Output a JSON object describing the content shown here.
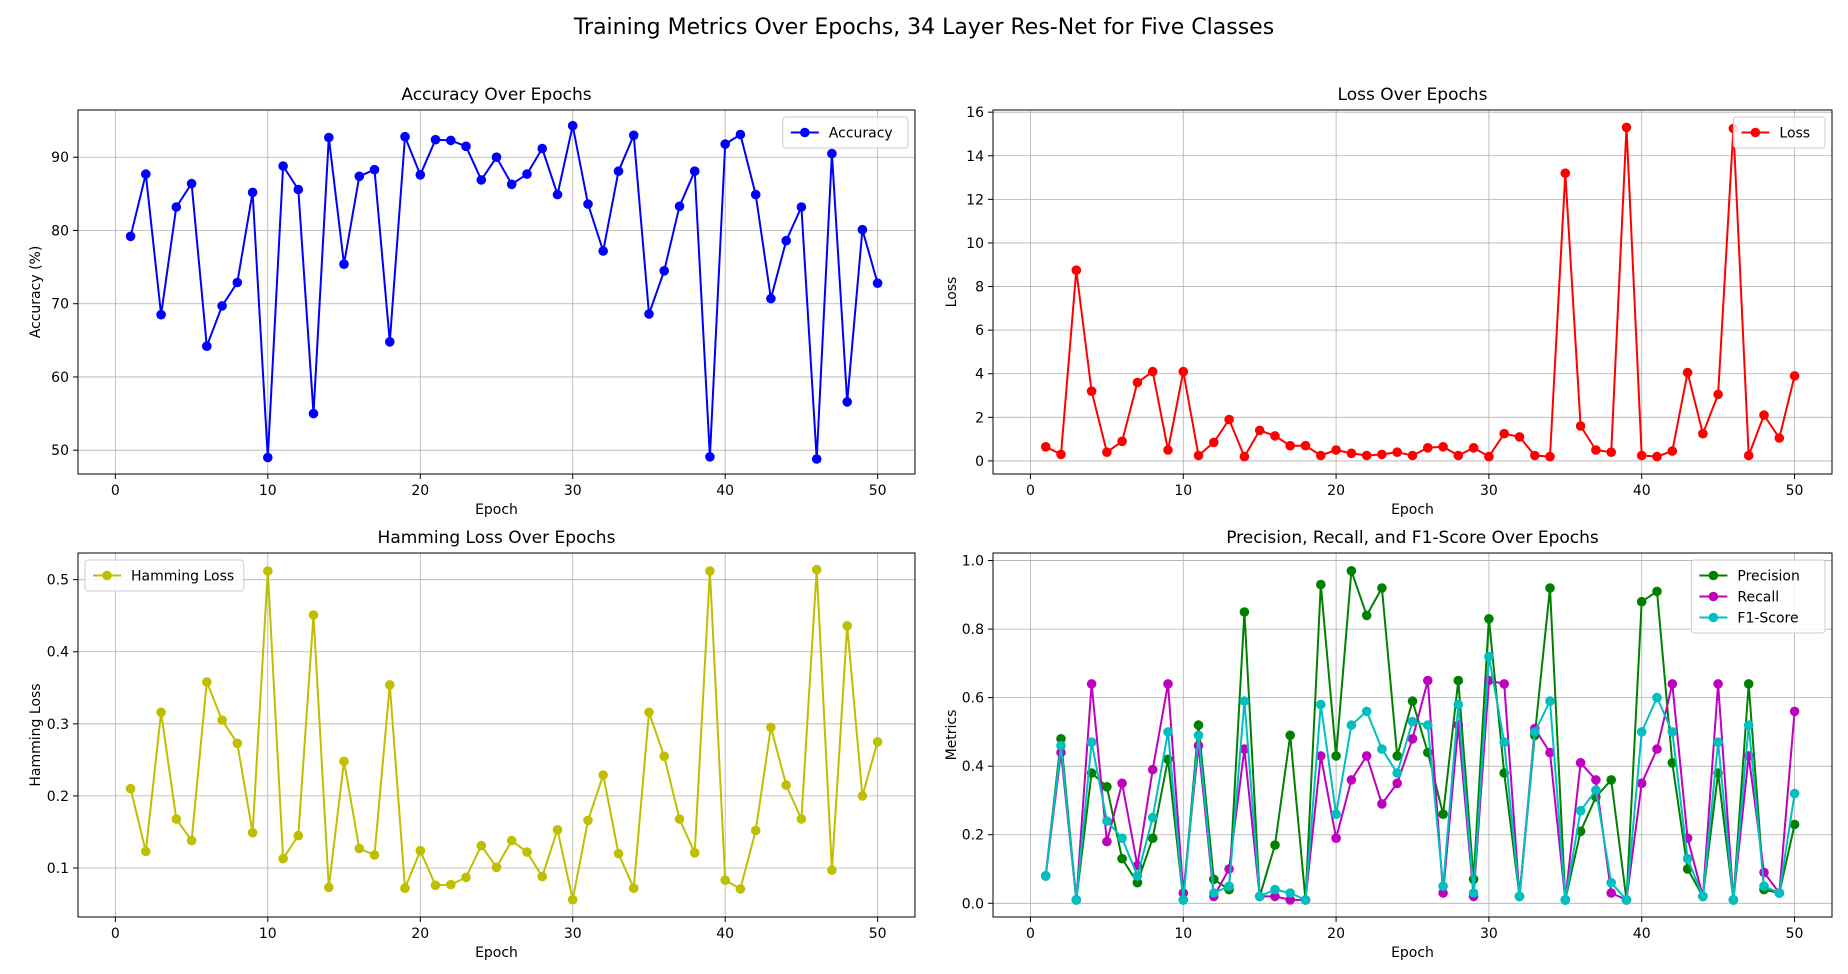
{
  "figure": {
    "suptitle": "Training Metrics Over Epochs, 34 Layer Res-Net for Five Classes"
  },
  "chart_data": [
    {
      "type": "line",
      "title": "Accuracy Over Epochs",
      "xlabel": "Epoch",
      "ylabel": "Accuracy (%)",
      "xlim": [
        -2.45,
        52.45
      ],
      "ylim": [
        46.75,
        96.45
      ],
      "xticks": [
        0,
        10,
        20,
        30,
        40,
        50
      ],
      "yticks": [
        50,
        60,
        70,
        80,
        90
      ],
      "grid": true,
      "legend_position": "upper right",
      "x": [
        1,
        2,
        3,
        4,
        5,
        6,
        7,
        8,
        9,
        10,
        11,
        12,
        13,
        14,
        15,
        16,
        17,
        18,
        19,
        20,
        21,
        22,
        23,
        24,
        25,
        26,
        27,
        28,
        29,
        30,
        31,
        32,
        33,
        34,
        35,
        36,
        37,
        38,
        39,
        40,
        41,
        42,
        43,
        44,
        45,
        46,
        47,
        48,
        49,
        50
      ],
      "series": [
        {
          "name": "Accuracy",
          "color": "#0000ff",
          "values": [
            79.2,
            87.7,
            68.5,
            83.2,
            86.4,
            64.2,
            69.7,
            72.9,
            85.2,
            49.0,
            88.8,
            85.6,
            55.0,
            92.7,
            75.4,
            87.4,
            88.3,
            64.8,
            92.8,
            87.6,
            92.4,
            92.3,
            91.5,
            86.9,
            90.0,
            86.3,
            87.7,
            91.2,
            84.9,
            94.3,
            83.6,
            77.2,
            88.1,
            93.0,
            68.6,
            74.5,
            83.3,
            88.1,
            49.1,
            91.8,
            93.1,
            84.9,
            70.7,
            78.6,
            83.2,
            48.8,
            90.5,
            56.6,
            80.1,
            72.8
          ]
        }
      ]
    },
    {
      "type": "line",
      "title": "Loss Over Epochs",
      "xlabel": "Epoch",
      "ylabel": "Loss",
      "xlim": [
        -2.45,
        52.45
      ],
      "ylim": [
        -0.6,
        16.1
      ],
      "xticks": [
        0,
        10,
        20,
        30,
        40,
        50
      ],
      "yticks": [
        0,
        2,
        4,
        6,
        8,
        10,
        12,
        14,
        16
      ],
      "grid": true,
      "legend_position": "upper right",
      "x": [
        1,
        2,
        3,
        4,
        5,
        6,
        7,
        8,
        9,
        10,
        11,
        12,
        13,
        14,
        15,
        16,
        17,
        18,
        19,
        20,
        21,
        22,
        23,
        24,
        25,
        26,
        27,
        28,
        29,
        30,
        31,
        32,
        33,
        34,
        35,
        36,
        37,
        38,
        39,
        40,
        41,
        42,
        43,
        44,
        45,
        46,
        47,
        48,
        49,
        50
      ],
      "series": [
        {
          "name": "Loss",
          "color": "#ff0000",
          "values": [
            0.65,
            0.3,
            8.75,
            3.2,
            0.4,
            0.9,
            3.6,
            4.1,
            0.5,
            4.1,
            0.25,
            0.85,
            1.9,
            0.2,
            1.4,
            1.15,
            0.7,
            0.7,
            0.25,
            0.5,
            0.35,
            0.25,
            0.3,
            0.4,
            0.25,
            0.6,
            0.65,
            0.25,
            0.6,
            0.2,
            1.25,
            1.1,
            0.25,
            0.2,
            13.2,
            1.6,
            0.5,
            0.4,
            15.3,
            0.25,
            0.2,
            0.45,
            4.05,
            1.25,
            3.05,
            15.25,
            0.25,
            2.1,
            1.05,
            3.9
          ]
        }
      ]
    },
    {
      "type": "line",
      "title": "Hamming Loss Over Epochs",
      "xlabel": "Epoch",
      "ylabel": "Hamming Loss",
      "xlim": [
        -2.45,
        52.45
      ],
      "ylim": [
        0.032,
        0.537
      ],
      "xticks": [
        0,
        10,
        20,
        30,
        40,
        50
      ],
      "yticks": [
        0.1,
        0.2,
        0.3,
        0.4,
        0.5
      ],
      "grid": true,
      "legend_position": "upper left",
      "x": [
        1,
        2,
        3,
        4,
        5,
        6,
        7,
        8,
        9,
        10,
        11,
        12,
        13,
        14,
        15,
        16,
        17,
        18,
        19,
        20,
        21,
        22,
        23,
        24,
        25,
        26,
        27,
        28,
        29,
        30,
        31,
        32,
        33,
        34,
        35,
        36,
        37,
        38,
        39,
        40,
        41,
        42,
        43,
        44,
        45,
        46,
        47,
        48,
        49,
        50
      ],
      "series": [
        {
          "name": "Hamming Loss",
          "color": "#bfbf00",
          "values": [
            0.21,
            0.123,
            0.316,
            0.168,
            0.138,
            0.358,
            0.305,
            0.273,
            0.149,
            0.512,
            0.113,
            0.145,
            0.451,
            0.073,
            0.248,
            0.127,
            0.118,
            0.354,
            0.072,
            0.124,
            0.076,
            0.077,
            0.087,
            0.131,
            0.101,
            0.138,
            0.122,
            0.088,
            0.153,
            0.056,
            0.166,
            0.229,
            0.12,
            0.072,
            0.316,
            0.255,
            0.168,
            0.121,
            0.512,
            0.083,
            0.071,
            0.152,
            0.295,
            0.215,
            0.168,
            0.514,
            0.097,
            0.436,
            0.2,
            0.275
          ]
        }
      ]
    },
    {
      "type": "line",
      "title": "Precision, Recall, and F1-Score Over Epochs",
      "xlabel": "Epoch",
      "ylabel": "Metrics",
      "xlim": [
        -2.45,
        52.45
      ],
      "ylim": [
        -0.04,
        1.022
      ],
      "xticks": [
        0,
        10,
        20,
        30,
        40,
        50
      ],
      "yticks": [
        0.0,
        0.2,
        0.4,
        0.6,
        0.8,
        1.0
      ],
      "grid": true,
      "legend_position": "upper right",
      "x": [
        1,
        2,
        3,
        4,
        5,
        6,
        7,
        8,
        9,
        10,
        11,
        12,
        13,
        14,
        15,
        16,
        17,
        18,
        19,
        20,
        21,
        22,
        23,
        24,
        25,
        26,
        27,
        28,
        29,
        30,
        31,
        32,
        33,
        34,
        35,
        36,
        37,
        38,
        39,
        40,
        41,
        42,
        43,
        44,
        45,
        46,
        47,
        48,
        49,
        50
      ],
      "series": [
        {
          "name": "Precision",
          "color": "#008000",
          "values": [
            0.08,
            0.48,
            0.01,
            0.38,
            0.34,
            0.13,
            0.06,
            0.19,
            0.42,
            0.01,
            0.52,
            0.07,
            0.04,
            0.85,
            0.02,
            0.17,
            0.49,
            0.01,
            0.93,
            0.43,
            0.97,
            0.84,
            0.92,
            0.43,
            0.59,
            0.44,
            0.26,
            0.65,
            0.07,
            0.83,
            0.38,
            0.02,
            0.49,
            0.92,
            0.01,
            0.21,
            0.31,
            0.36,
            0.01,
            0.88,
            0.91,
            0.41,
            0.1,
            0.02,
            0.38,
            0.01,
            0.64,
            0.04,
            0.03,
            0.23
          ]
        },
        {
          "name": "Recall",
          "color": "#bf00bf",
          "values": [
            0.08,
            0.44,
            0.01,
            0.64,
            0.18,
            0.35,
            0.11,
            0.39,
            0.64,
            0.03,
            0.46,
            0.02,
            0.1,
            0.45,
            0.02,
            0.02,
            0.01,
            0.01,
            0.43,
            0.19,
            0.36,
            0.43,
            0.29,
            0.35,
            0.48,
            0.65,
            0.03,
            0.52,
            0.02,
            0.65,
            0.64,
            0.02,
            0.51,
            0.44,
            0.01,
            0.41,
            0.36,
            0.03,
            0.01,
            0.35,
            0.45,
            0.64,
            0.19,
            0.02,
            0.64,
            0.01,
            0.43,
            0.09,
            0.03,
            0.56
          ]
        },
        {
          "name": "F1-Score",
          "color": "#00bfbf",
          "values": [
            0.08,
            0.46,
            0.01,
            0.47,
            0.24,
            0.19,
            0.08,
            0.25,
            0.5,
            0.01,
            0.49,
            0.03,
            0.05,
            0.59,
            0.02,
            0.04,
            0.03,
            0.01,
            0.58,
            0.26,
            0.52,
            0.56,
            0.45,
            0.38,
            0.53,
            0.52,
            0.05,
            0.58,
            0.03,
            0.72,
            0.47,
            0.02,
            0.5,
            0.59,
            0.01,
            0.27,
            0.33,
            0.06,
            0.01,
            0.5,
            0.6,
            0.5,
            0.13,
            0.02,
            0.47,
            0.01,
            0.52,
            0.05,
            0.03,
            0.32
          ]
        }
      ]
    }
  ]
}
